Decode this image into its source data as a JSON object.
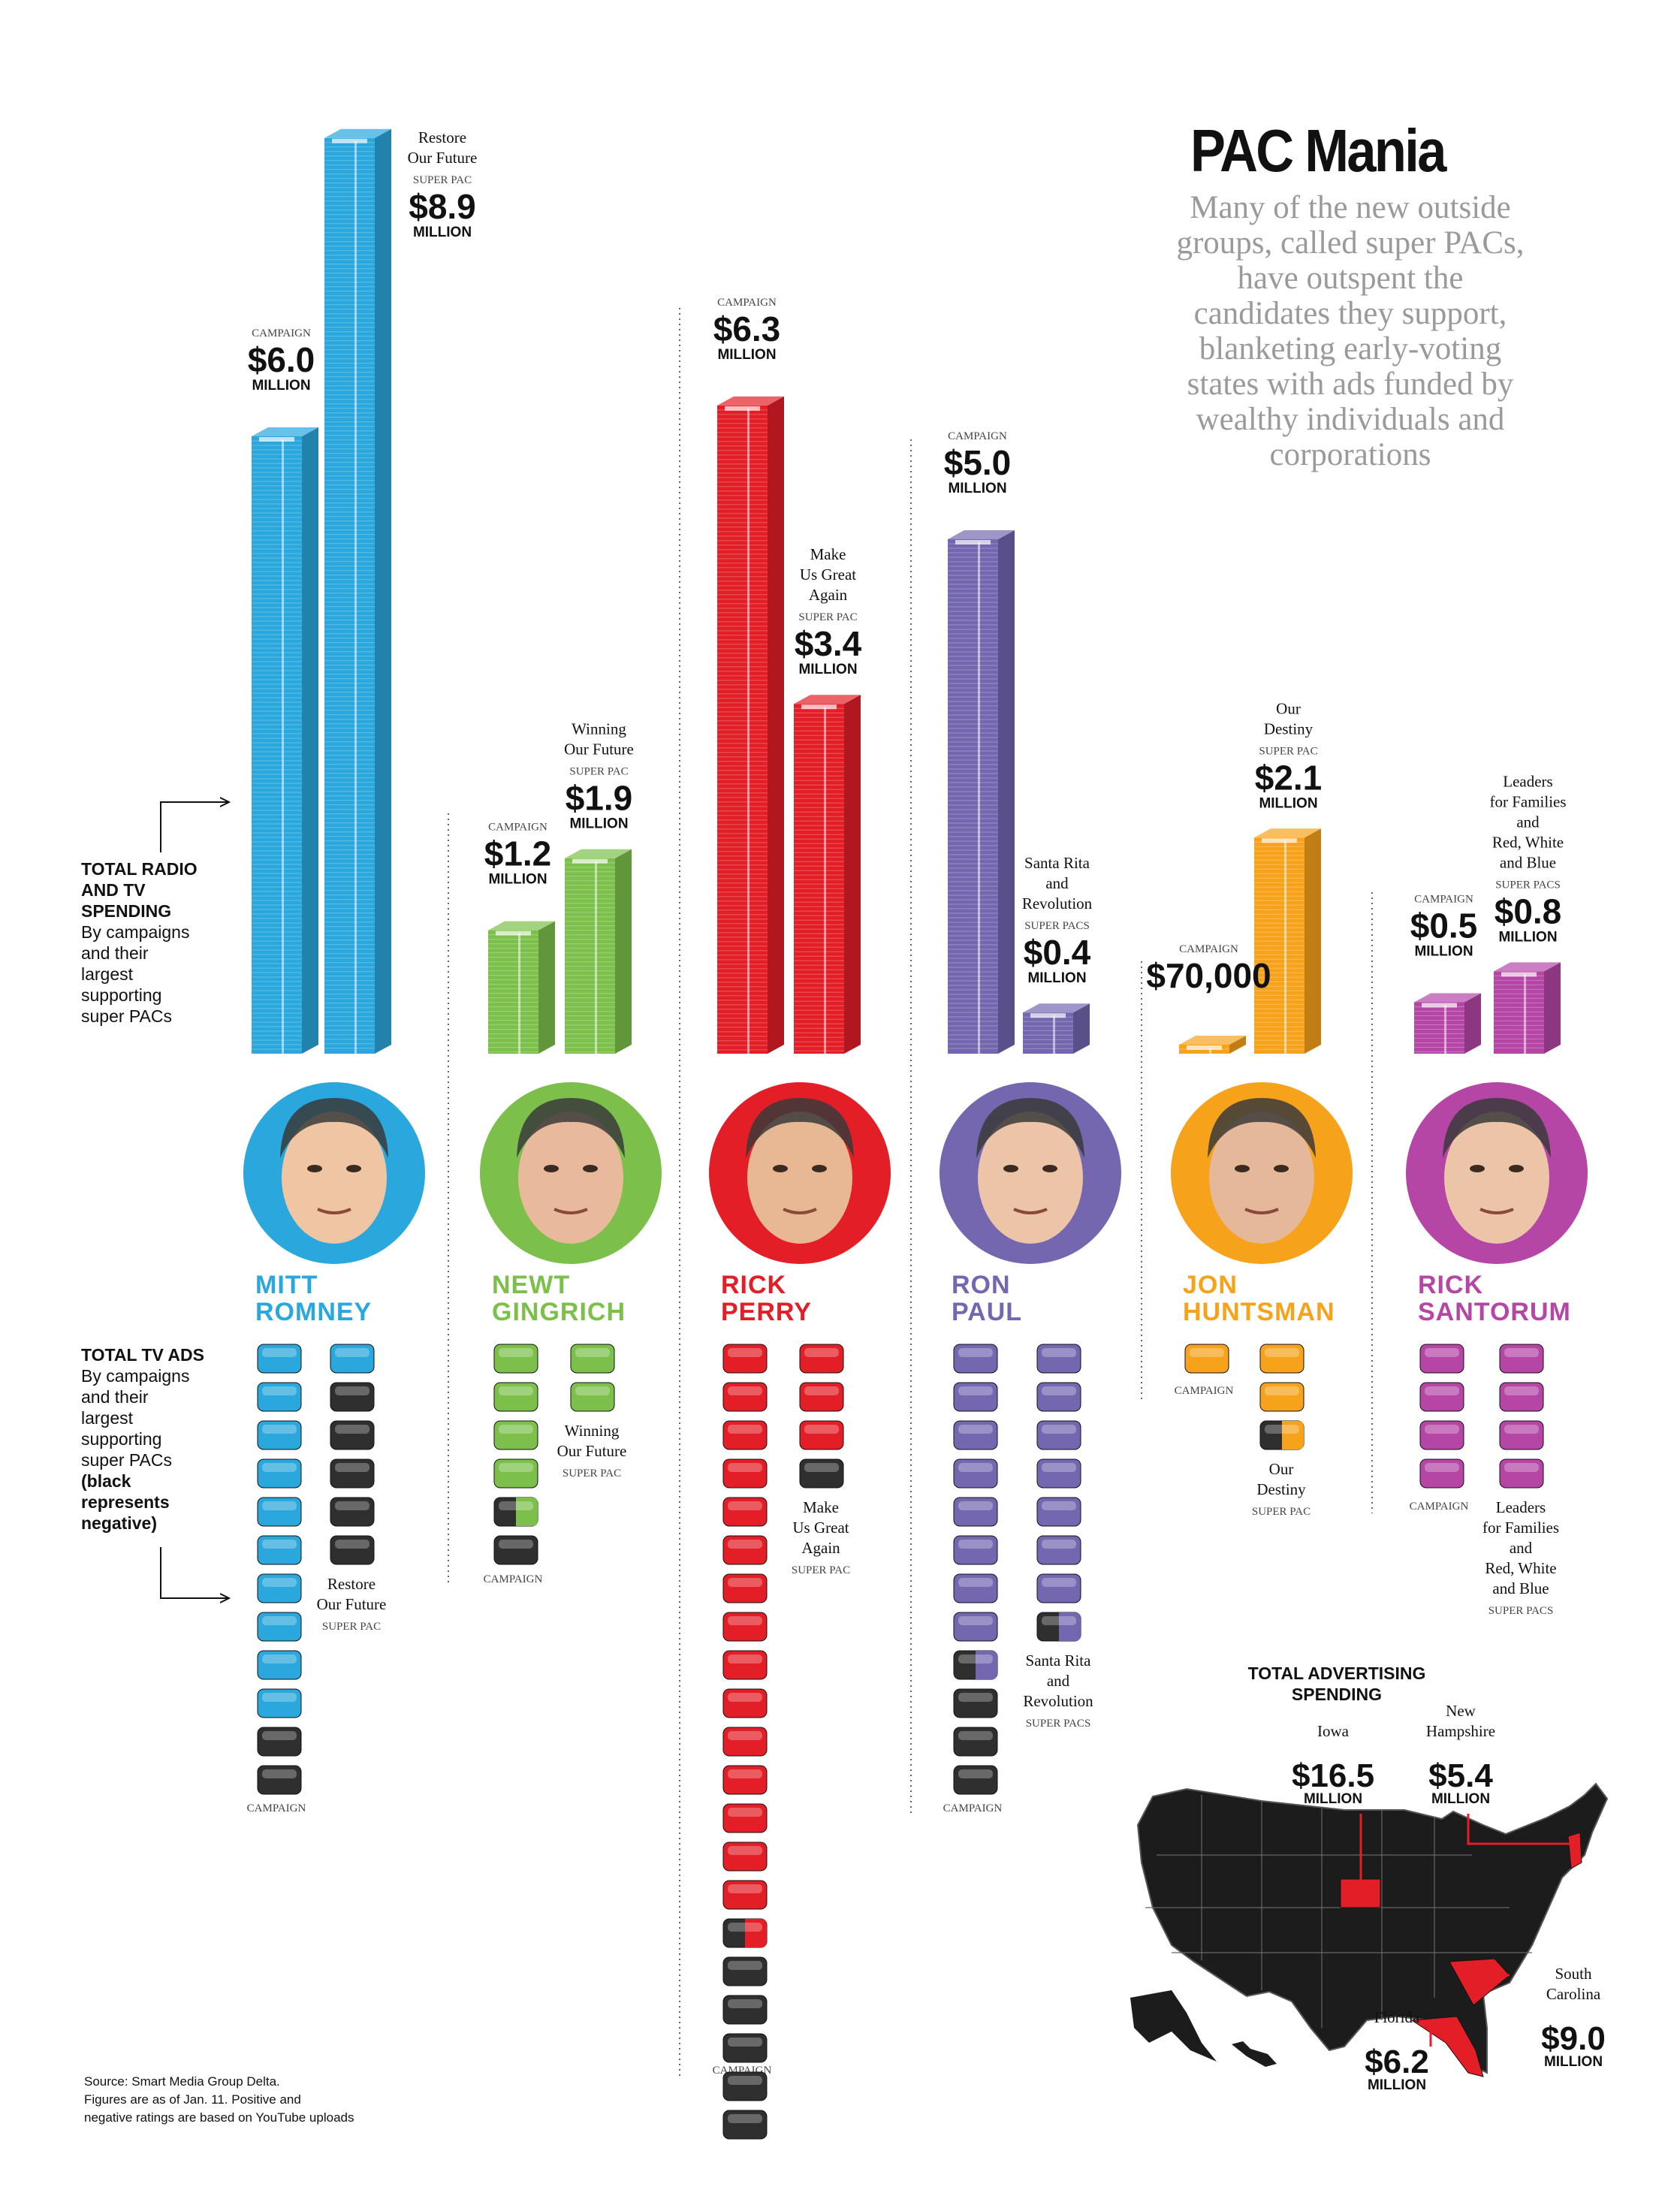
{
  "title": "PAC Mania",
  "intro": [
    "Many of the new outside",
    "groups, called super PACs,",
    "have outspent the",
    "candidates they support,",
    "blanketing early-voting",
    "states with ads funded by",
    "wealthy individuals and",
    "corporations"
  ],
  "radio_tv_label": {
    "heading": [
      "TOTAL RADIO",
      "AND TV",
      "SPENDING"
    ],
    "sub": [
      "By campaigns",
      "and their",
      "largest",
      "supporting",
      "super PACs"
    ]
  },
  "tv_ads_label": {
    "heading": [
      "TOTAL TV ADS"
    ],
    "sub": [
      "By campaigns",
      "and their",
      "largest",
      "supporting",
      "super PACs"
    ],
    "note": [
      "(black",
      "represents",
      "negative)"
    ]
  },
  "source": [
    "Source: Smart Media Group Delta.",
    "Figures are as of Jan. 11. Positive and",
    "negative ratings are based on YouTube uploads"
  ],
  "chart_data": [
    {
      "type": "bar",
      "title": "TOTAL RADIO AND TV SPENDING",
      "unit": "MILLION",
      "candidates": [
        {
          "first": "MITT",
          "last": "ROMNEY",
          "color": "#2aa7dc",
          "face": "#f0c5a3",
          "campaign": {
            "label": "CAMPAIGN",
            "amount": "$6.0",
            "unit": "MILLION",
            "value": 6.0
          },
          "pac": {
            "name": [
              "Restore",
              "Our Future"
            ],
            "type": "SUPER PAC",
            "amount": "$8.9",
            "unit": "MILLION",
            "value": 8.9
          }
        },
        {
          "first": "NEWT",
          "last": "GINGRICH",
          "color": "#7cc04b",
          "face": "#e9b99c",
          "campaign": {
            "label": "CAMPAIGN",
            "amount": "$1.2",
            "unit": "MILLION",
            "value": 1.2
          },
          "pac": {
            "name": [
              "Winning",
              "Our Future"
            ],
            "type": "SUPER PAC",
            "amount": "$1.9",
            "unit": "MILLION",
            "value": 1.9
          }
        },
        {
          "first": "RICK",
          "last": "PERRY",
          "color": "#e31e26",
          "face": "#e8b894",
          "campaign": {
            "label": "CAMPAIGN",
            "amount": "$6.3",
            "unit": "MILLION",
            "value": 6.3
          },
          "pac": {
            "name": [
              "Make",
              "Us Great",
              "Again"
            ],
            "type": "SUPER PAC",
            "amount": "$3.4",
            "unit": "MILLION",
            "value": 3.4
          }
        },
        {
          "first": "RON",
          "last": "PAUL",
          "color": "#7467b0",
          "face": "#ecc4a8",
          "campaign": {
            "label": "CAMPAIGN",
            "amount": "$5.0",
            "unit": "MILLION",
            "value": 5.0
          },
          "pac": {
            "name": [
              "Santa Rita",
              "and",
              "Revolution"
            ],
            "type": "SUPER PACS",
            "amount": "$0.4",
            "unit": "MILLION",
            "value": 0.4
          }
        },
        {
          "first": "JON",
          "last": "HUNTSMAN",
          "color": "#f7a21b",
          "face": "#e6b89a",
          "campaign": {
            "label": "CAMPAIGN",
            "amount": "$70,000",
            "unit": "",
            "value": 0.07
          },
          "pac": {
            "name": [
              "Our",
              "Destiny"
            ],
            "type": "SUPER PAC",
            "amount": "$2.1",
            "unit": "MILLION",
            "value": 2.1
          }
        },
        {
          "first": "RICK",
          "last": "SANTORUM",
          "color": "#b546a6",
          "face": "#ecc4a8",
          "campaign": {
            "label": "CAMPAIGN",
            "amount": "$0.5",
            "unit": "MILLION",
            "value": 0.5
          },
          "pac": {
            "name": [
              "Leaders",
              "for Families",
              "and",
              "Red, White",
              "and Blue"
            ],
            "type": "SUPER PACS",
            "amount": "$0.8",
            "unit": "MILLION",
            "value": 0.8
          }
        }
      ]
    },
    {
      "type": "table",
      "title": "TOTAL TV ADS",
      "note": "black represents negative",
      "columns": [
        "candidate",
        "group",
        "positive",
        "negative"
      ],
      "rows": [
        {
          "candidate": "MITT ROMNEY",
          "group": "CAMPAIGN",
          "positive": 10,
          "negative": 2
        },
        {
          "candidate": "MITT ROMNEY",
          "group": "Restore Our Future",
          "positive": 1,
          "negative": 5
        },
        {
          "candidate": "NEWT GINGRICH",
          "group": "CAMPAIGN",
          "positive": 4.5,
          "negative": 1.5
        },
        {
          "candidate": "NEWT GINGRICH",
          "group": "Winning Our Future",
          "positive": 2,
          "negative": 0
        },
        {
          "candidate": "RICK PERRY",
          "group": "CAMPAIGN",
          "positive": 15.5,
          "negative": 5.5
        },
        {
          "candidate": "RICK PERRY",
          "group": "Make Us Great Again",
          "positive": 3,
          "negative": 1
        },
        {
          "candidate": "RON PAUL",
          "group": "CAMPAIGN",
          "positive": 8.5,
          "negative": 3.5
        },
        {
          "candidate": "RON PAUL",
          "group": "Santa Rita and Revolution",
          "positive": 7.5,
          "negative": 0.5
        },
        {
          "candidate": "JON HUNTSMAN",
          "group": "CAMPAIGN",
          "positive": 1,
          "negative": 0
        },
        {
          "candidate": "JON HUNTSMAN",
          "group": "Our Destiny",
          "positive": 2.5,
          "negative": 0.5
        },
        {
          "candidate": "RICK SANTORUM",
          "group": "CAMPAIGN",
          "positive": 4,
          "negative": 0
        },
        {
          "candidate": "RICK SANTORUM",
          "group": "Leaders for Families and Red, White and Blue",
          "positive": 4,
          "negative": 0
        }
      ]
    },
    {
      "type": "map",
      "title": "TOTAL ADVERTISING SPENDING",
      "states": [
        {
          "name": "Iowa",
          "amount": "$16.5",
          "unit": "MILLION",
          "value": 16.5
        },
        {
          "name": "New Hampshire",
          "amount": "$5.4",
          "unit": "MILLION",
          "value": 5.4
        },
        {
          "name": "South Carolina",
          "amount": "$9.0",
          "unit": "MILLION",
          "value": 9.0
        },
        {
          "name": "Florida",
          "amount": "$6.2",
          "unit": "MILLION",
          "value": 6.2
        }
      ],
      "map_color": "#1c1c1c",
      "highlight_color": "#e31e26"
    }
  ]
}
